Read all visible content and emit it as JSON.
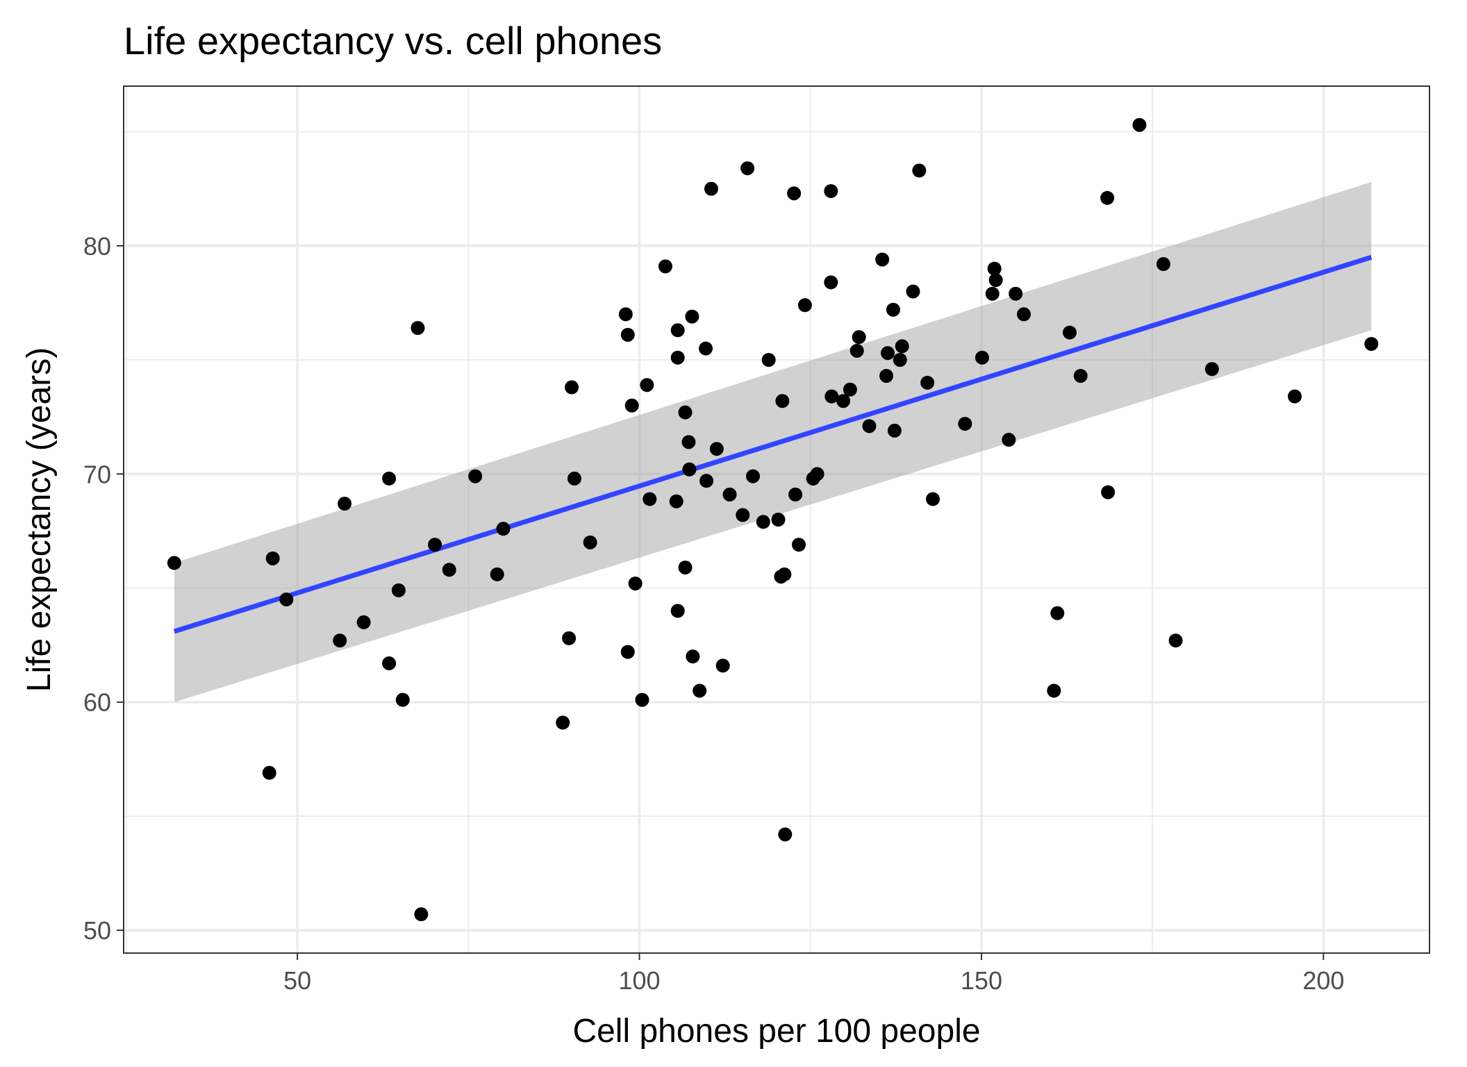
{
  "chart_data": {
    "type": "scatter",
    "title": "Life expectancy vs. cell phones",
    "xlabel": "Cell phones per 100 people",
    "ylabel": "Life expectancy (years)",
    "xlim": [
      24.6,
      215.5
    ],
    "ylim": [
      49.0,
      87.0
    ],
    "x_ticks": [
      50,
      100,
      150,
      200
    ],
    "x_minor_ticks": [
      25,
      75,
      125,
      175
    ],
    "y_ticks": [
      50,
      60,
      70,
      80
    ],
    "y_minor_ticks": [
      55,
      65,
      75,
      85
    ],
    "x_tick_labels": [
      "50",
      "100",
      "150",
      "200"
    ],
    "y_tick_labels": [
      "50",
      "60",
      "70",
      "80"
    ],
    "grid": true,
    "theme": "bw",
    "fit": {
      "method": "lm",
      "x": [
        32.0,
        207.0
      ],
      "y": [
        63.1,
        79.5
      ],
      "ci_lower": [
        60.0,
        76.3
      ],
      "ci_upper": [
        66.1,
        82.8
      ],
      "color": "#3344ff"
    },
    "points": [
      {
        "x": 32.0,
        "y": 66.1
      },
      {
        "x": 45.9,
        "y": 56.9
      },
      {
        "x": 46.4,
        "y": 66.3
      },
      {
        "x": 48.4,
        "y": 64.5
      },
      {
        "x": 56.2,
        "y": 62.7
      },
      {
        "x": 56.9,
        "y": 68.7
      },
      {
        "x": 59.7,
        "y": 63.5
      },
      {
        "x": 63.4,
        "y": 69.8
      },
      {
        "x": 63.4,
        "y": 61.7
      },
      {
        "x": 64.8,
        "y": 64.9
      },
      {
        "x": 65.4,
        "y": 60.1
      },
      {
        "x": 67.6,
        "y": 76.4
      },
      {
        "x": 68.1,
        "y": 50.7
      },
      {
        "x": 70.1,
        "y": 66.9
      },
      {
        "x": 72.2,
        "y": 65.8
      },
      {
        "x": 76.0,
        "y": 69.9
      },
      {
        "x": 79.2,
        "y": 65.6
      },
      {
        "x": 80.1,
        "y": 67.6
      },
      {
        "x": 88.8,
        "y": 59.1
      },
      {
        "x": 89.7,
        "y": 62.8
      },
      {
        "x": 90.1,
        "y": 73.8
      },
      {
        "x": 90.5,
        "y": 69.8
      },
      {
        "x": 92.8,
        "y": 67.0
      },
      {
        "x": 98.0,
        "y": 77.0
      },
      {
        "x": 98.3,
        "y": 76.1
      },
      {
        "x": 98.3,
        "y": 62.2
      },
      {
        "x": 98.9,
        "y": 73.0
      },
      {
        "x": 99.4,
        "y": 65.2
      },
      {
        "x": 100.4,
        "y": 60.1
      },
      {
        "x": 101.1,
        "y": 73.9
      },
      {
        "x": 101.5,
        "y": 68.9
      },
      {
        "x": 103.8,
        "y": 79.1
      },
      {
        "x": 105.4,
        "y": 68.8
      },
      {
        "x": 105.6,
        "y": 76.3
      },
      {
        "x": 105.6,
        "y": 75.1
      },
      {
        "x": 105.6,
        "y": 64.0
      },
      {
        "x": 106.7,
        "y": 72.7
      },
      {
        "x": 106.7,
        "y": 65.9
      },
      {
        "x": 107.2,
        "y": 71.4
      },
      {
        "x": 107.3,
        "y": 70.2
      },
      {
        "x": 107.7,
        "y": 76.9
      },
      {
        "x": 107.8,
        "y": 62.0
      },
      {
        "x": 108.8,
        "y": 60.5
      },
      {
        "x": 109.7,
        "y": 75.5
      },
      {
        "x": 109.8,
        "y": 69.7
      },
      {
        "x": 110.5,
        "y": 82.5
      },
      {
        "x": 111.3,
        "y": 71.1
      },
      {
        "x": 112.2,
        "y": 61.6
      },
      {
        "x": 113.2,
        "y": 69.1
      },
      {
        "x": 115.1,
        "y": 68.2
      },
      {
        "x": 115.8,
        "y": 83.4
      },
      {
        "x": 116.6,
        "y": 69.9
      },
      {
        "x": 118.1,
        "y": 67.9
      },
      {
        "x": 118.9,
        "y": 75.0
      },
      {
        "x": 120.3,
        "y": 68.0
      },
      {
        "x": 120.7,
        "y": 65.5
      },
      {
        "x": 120.9,
        "y": 73.2
      },
      {
        "x": 121.2,
        "y": 65.6
      },
      {
        "x": 121.3,
        "y": 54.2
      },
      {
        "x": 122.6,
        "y": 82.3
      },
      {
        "x": 122.8,
        "y": 69.1
      },
      {
        "x": 123.3,
        "y": 66.9
      },
      {
        "x": 124.2,
        "y": 77.4
      },
      {
        "x": 125.4,
        "y": 69.8
      },
      {
        "x": 126.0,
        "y": 70.0
      },
      {
        "x": 128.0,
        "y": 82.4
      },
      {
        "x": 128.0,
        "y": 78.4
      },
      {
        "x": 128.1,
        "y": 73.4
      },
      {
        "x": 129.8,
        "y": 73.2
      },
      {
        "x": 130.8,
        "y": 73.7
      },
      {
        "x": 131.8,
        "y": 75.4
      },
      {
        "x": 132.1,
        "y": 76.0
      },
      {
        "x": 133.6,
        "y": 72.1
      },
      {
        "x": 135.5,
        "y": 79.4
      },
      {
        "x": 136.1,
        "y": 74.3
      },
      {
        "x": 136.3,
        "y": 75.3
      },
      {
        "x": 137.1,
        "y": 77.2
      },
      {
        "x": 137.3,
        "y": 71.9
      },
      {
        "x": 138.1,
        "y": 75.0
      },
      {
        "x": 138.4,
        "y": 75.6
      },
      {
        "x": 140.0,
        "y": 78.0
      },
      {
        "x": 140.9,
        "y": 83.3
      },
      {
        "x": 142.1,
        "y": 74.0
      },
      {
        "x": 142.9,
        "y": 68.9
      },
      {
        "x": 147.6,
        "y": 72.2
      },
      {
        "x": 150.1,
        "y": 75.1
      },
      {
        "x": 151.6,
        "y": 77.9
      },
      {
        "x": 151.9,
        "y": 79.0
      },
      {
        "x": 152.1,
        "y": 78.5
      },
      {
        "x": 154.0,
        "y": 71.5
      },
      {
        "x": 155.0,
        "y": 77.9
      },
      {
        "x": 156.2,
        "y": 77.0
      },
      {
        "x": 160.6,
        "y": 60.5
      },
      {
        "x": 161.1,
        "y": 63.9
      },
      {
        "x": 162.9,
        "y": 76.2
      },
      {
        "x": 164.5,
        "y": 74.3
      },
      {
        "x": 168.4,
        "y": 82.1
      },
      {
        "x": 168.5,
        "y": 69.2
      },
      {
        "x": 173.1,
        "y": 85.3
      },
      {
        "x": 176.6,
        "y": 79.2
      },
      {
        "x": 178.4,
        "y": 62.7
      },
      {
        "x": 183.7,
        "y": 74.6
      },
      {
        "x": 195.8,
        "y": 73.4
      },
      {
        "x": 207.0,
        "y": 75.7
      }
    ]
  }
}
